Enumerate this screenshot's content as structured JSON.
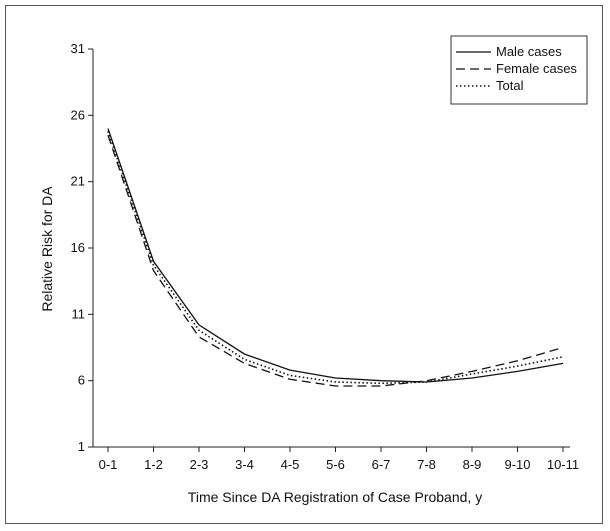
{
  "chart_data": {
    "type": "line",
    "title": "",
    "xlabel": "Time Since DA Registration of Case Proband, y",
    "ylabel": "Relative Risk for DA",
    "categories": [
      "0-1",
      "1-2",
      "2-3",
      "3-4",
      "4-5",
      "5-6",
      "6-7",
      "7-8",
      "8-9",
      "9-10",
      "10-11"
    ],
    "yticks": [
      1,
      6,
      11,
      16,
      21,
      26,
      31
    ],
    "ylim": [
      1,
      31
    ],
    "grid": false,
    "legend_position": "top-right",
    "series": [
      {
        "name": "Male cases",
        "style": "solid",
        "values": [
          25.0,
          15.0,
          10.2,
          8.0,
          6.8,
          6.2,
          6.0,
          5.9,
          6.2,
          6.7,
          7.3
        ]
      },
      {
        "name": "Female cases",
        "style": "dashed",
        "values": [
          24.5,
          14.3,
          9.3,
          7.3,
          6.1,
          5.6,
          5.6,
          6.0,
          6.7,
          7.5,
          8.5
        ]
      },
      {
        "name": "Total",
        "style": "dotted",
        "values": [
          24.8,
          14.7,
          9.8,
          7.6,
          6.4,
          5.9,
          5.8,
          5.9,
          6.5,
          7.1,
          7.8
        ]
      }
    ]
  }
}
